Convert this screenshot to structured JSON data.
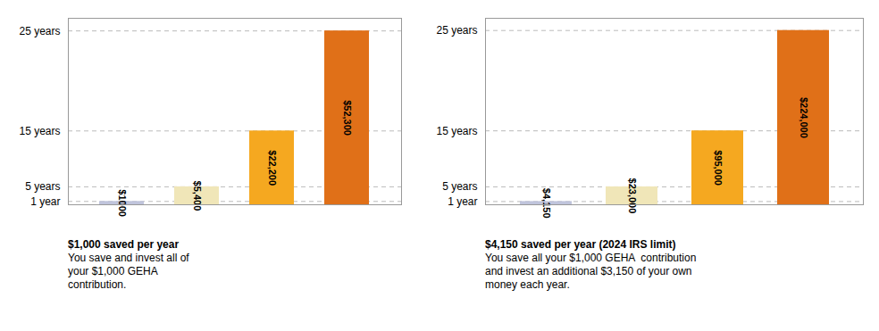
{
  "chart_data": [
    {
      "type": "bar",
      "categories": [
        null,
        null,
        null,
        null
      ],
      "values": [
        1000,
        5400,
        22200,
        52300
      ],
      "value_labels": [
        "$1000",
        "$5,400",
        "$22,200",
        "$52,300"
      ],
      "colors": [
        "#c0c4dc",
        "#f0e6b8",
        "#f5a820",
        "#e07018"
      ],
      "data_labels": true,
      "ylim": [
        0,
        56100
      ],
      "yticks": [
        {
          "value": 1000,
          "label": "1 year"
        },
        {
          "value": 5400,
          "label": "5 years"
        },
        {
          "value": 22200,
          "label": "15 years"
        },
        {
          "value": 52300,
          "label": "25 years"
        }
      ],
      "grid": true,
      "tick_labels": "y",
      "annotations": [
        "$1,000 saved per year",
        "You save and invest all of",
        "your $1,000 GEHA",
        "contribution."
      ]
    },
    {
      "type": "bar",
      "categories": [
        null,
        null,
        null,
        null
      ],
      "values": [
        4150,
        23000,
        95000,
        224000
      ],
      "value_labels": [
        "$4,150",
        "$23,000",
        "$95,000",
        "$224,000"
      ],
      "colors": [
        "#c0c4dc",
        "#f0e6b8",
        "#f5a820",
        "#e07018"
      ],
      "data_labels": true,
      "ylim": [
        0,
        239700
      ],
      "yticks": [
        {
          "value": 4150,
          "label": "1 year"
        },
        {
          "value": 23000,
          "label": "5 years"
        },
        {
          "value": 95000,
          "label": "15 years"
        },
        {
          "value": 224000,
          "label": "25 years"
        }
      ],
      "grid": true,
      "tick_labels": "y",
      "annotations": [
        "$4,150 saved per year (2024 IRS limit)",
        "You save all your $1,000 GEHA  contribution",
        "and invest an additional $3,150 of your own",
        "money each year."
      ]
    }
  ]
}
